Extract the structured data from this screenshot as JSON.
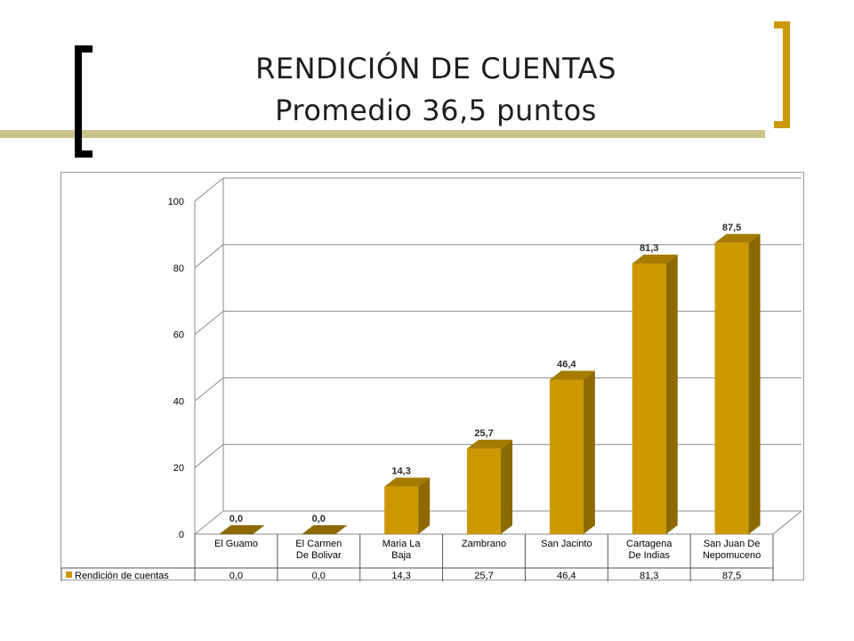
{
  "title": {
    "line1": "RENDICIÓN DE CUENTAS",
    "line2": "Promedio 36,5 puntos"
  },
  "colors": {
    "bar_front": "#CC9900",
    "bar_side": "#8C6A00",
    "bar_top": "#A67C00",
    "bracket_left": "#000000",
    "bracket_right": "#CC9900",
    "stripe": "#C9C38A"
  },
  "chart_data": {
    "type": "bar",
    "categories": [
      [
        "El Guamo"
      ],
      [
        "El Carmen",
        "De Bolivar"
      ],
      [
        "Maria La",
        "Baja"
      ],
      [
        "Zambrano"
      ],
      [
        "San Jacinto"
      ],
      [
        "Cartagena",
        "De Indias"
      ],
      [
        "San Juan De",
        "Nepomuceno"
      ]
    ],
    "series": [
      {
        "name": "Rendición de cuentas",
        "values": [
          0.0,
          0.0,
          14.3,
          25.7,
          46.4,
          81.3,
          87.5
        ],
        "labels": [
          "0,0",
          "0,0",
          "14,3",
          "25,7",
          "46,4",
          "81,3",
          "87,5"
        ]
      }
    ],
    "yticks": [
      "0",
      "20",
      "40",
      "60",
      "80",
      "100"
    ],
    "ylim": [
      0,
      100
    ],
    "grid": true,
    "data_table": true,
    "three_d": true
  }
}
